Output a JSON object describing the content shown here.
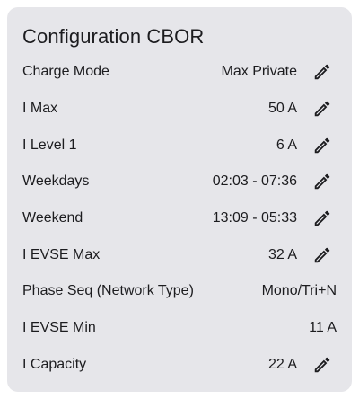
{
  "card": {
    "title": "Configuration CBOR",
    "rows": [
      {
        "label": "Charge Mode",
        "value": "Max Private",
        "editable": true
      },
      {
        "label": "I Max",
        "value": "50 A",
        "editable": true
      },
      {
        "label": "I Level 1",
        "value": "6 A",
        "editable": true
      },
      {
        "label": "Weekdays",
        "value": "02:03 - 07:36",
        "editable": true
      },
      {
        "label": "Weekend",
        "value": "13:09 - 05:33",
        "editable": true
      },
      {
        "label": "I EVSE Max",
        "value": "32 A",
        "editable": true
      },
      {
        "label": "Phase Seq (Network Type)",
        "value": "Mono/Tri+N",
        "editable": false
      },
      {
        "label": "I EVSE Min",
        "value": "11 A",
        "editable": false
      },
      {
        "label": "I Capacity",
        "value": "22 A",
        "editable": true
      }
    ],
    "edit_icon": "pencil-icon"
  }
}
